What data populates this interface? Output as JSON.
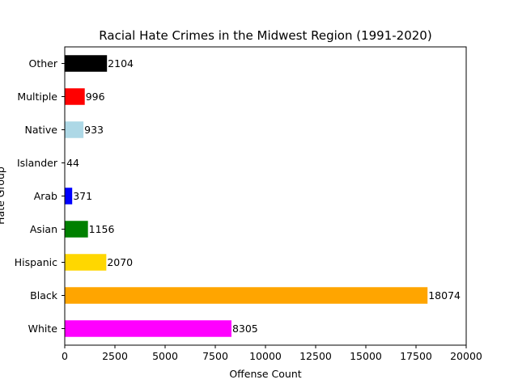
{
  "chart_data": {
    "type": "bar",
    "orientation": "horizontal",
    "title": "Racial Hate Crimes in the Midwest Region (1991-2020)",
    "xlabel": "Offense Count",
    "ylabel": "Hate Group",
    "xlim": [
      0,
      20000
    ],
    "xticks": [
      0,
      2500,
      5000,
      7500,
      10000,
      12500,
      15000,
      17500,
      20000
    ],
    "categories": [
      "White",
      "Black",
      "Hispanic",
      "Asian",
      "Arab",
      "Islander",
      "Native",
      "Multiple",
      "Other"
    ],
    "values": [
      8305,
      18074,
      2070,
      1156,
      371,
      44,
      933,
      996,
      2104
    ],
    "colors": [
      "#ff00ff",
      "#ffa500",
      "#ffd700",
      "#008000",
      "#0000ff",
      "#ffffff",
      "#add8e6",
      "#ff0000",
      "#000000"
    ],
    "grid": false,
    "legend": "none"
  }
}
